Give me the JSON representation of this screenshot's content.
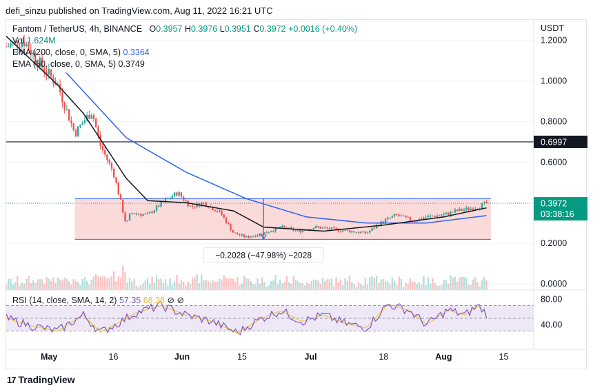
{
  "publisher_line": "defi_sinzu published on TradingView.com, Aug 11, 2022 16:21 UTC",
  "legend": {
    "symbol": "Fantom / TetherUS, 4h, BINANCE",
    "o_label": "O",
    "o_value": "0.3957",
    "h_label": "H",
    "h_value": "0.3976",
    "l_label": "L",
    "l_value": "0.3951",
    "c_label": "C",
    "c_value": "0.3972",
    "change": "+0.0016 (+0.40%)",
    "vol_label": "Vol",
    "vol_value": "1.624M",
    "ema200": "EMA (200, close, 0, SMA, 5)",
    "ema200_value": "0.3364",
    "ema50": "EMA (50, close, 0, SMA, 5)",
    "ema50_value": "0.3749"
  },
  "rsi_legend": {
    "label": "RSI (14, close, SMA, 14, 2)",
    "value1": "57.35",
    "value2": "68.38"
  },
  "price_axis": {
    "currency": "USDT",
    "ticks": [
      "1.2000",
      "1.0000",
      "0.8000",
      "0.6000",
      "0.2000",
      "0.0000"
    ]
  },
  "rsi_axis": {
    "ticks": [
      "80.00",
      "40.00"
    ]
  },
  "time_axis": {
    "ticks": [
      "May",
      "16",
      "Jun",
      "15",
      "Jul",
      "18",
      "Aug",
      "15"
    ]
  },
  "price_labels": {
    "horizontal_line": "0.6997",
    "last_price": "0.3972",
    "countdown": "03:38:16"
  },
  "measure_label": "−0.2028 (−47.98%) −2028",
  "footer": {
    "brand": "TradingView",
    "mark": "17"
  },
  "colors": {
    "up": "#26a69a",
    "down": "#ef5350",
    "ema200": "#2962ff",
    "ema50": "#131722",
    "range_fill": "#fbdada",
    "range_border": "#2962ff",
    "rsi_line": "#7e57c2",
    "rsi_ma": "#f2c94c",
    "rsi_band": "#ede7f6",
    "last_price_bg": "#089981"
  },
  "chart_data": {
    "type": "candlestick",
    "symbol": "Fantom / TetherUS",
    "timeframe": "4h",
    "exchange": "BINANCE",
    "y_axis_range": [
      -0.03,
      1.3
    ],
    "x_axis_range": [
      "2022-04-21",
      "2022-08-22"
    ],
    "ohlc_last": {
      "open": 0.3957,
      "high": 0.3976,
      "low": 0.3951,
      "close": 0.3972,
      "change": 0.0016,
      "change_pct": 0.4
    },
    "price_path": [
      {
        "date": "2022-04-21",
        "close": 1.17
      },
      {
        "date": "2022-04-25",
        "close": 1.2
      },
      {
        "date": "2022-04-29",
        "close": 1.08
      },
      {
        "date": "2022-05-03",
        "close": 0.98
      },
      {
        "date": "2022-05-07",
        "close": 0.74
      },
      {
        "date": "2022-05-09",
        "close": 0.8
      },
      {
        "date": "2022-05-11",
        "close": 0.85
      },
      {
        "date": "2022-05-13",
        "close": 0.68
      },
      {
        "date": "2022-05-16",
        "close": 0.55
      },
      {
        "date": "2022-05-19",
        "close": 0.29
      },
      {
        "date": "2022-05-20",
        "close": 0.35
      },
      {
        "date": "2022-05-24",
        "close": 0.34
      },
      {
        "date": "2022-05-28",
        "close": 0.41
      },
      {
        "date": "2022-05-31",
        "close": 0.45
      },
      {
        "date": "2022-06-03",
        "close": 0.38
      },
      {
        "date": "2022-06-06",
        "close": 0.4
      },
      {
        "date": "2022-06-10",
        "close": 0.35
      },
      {
        "date": "2022-06-13",
        "close": 0.25
      },
      {
        "date": "2022-06-16",
        "close": 0.23
      },
      {
        "date": "2022-06-20",
        "close": 0.25
      },
      {
        "date": "2022-06-24",
        "close": 0.28
      },
      {
        "date": "2022-06-28",
        "close": 0.26
      },
      {
        "date": "2022-07-02",
        "close": 0.28
      },
      {
        "date": "2022-07-06",
        "close": 0.27
      },
      {
        "date": "2022-07-10",
        "close": 0.26
      },
      {
        "date": "2022-07-14",
        "close": 0.25
      },
      {
        "date": "2022-07-18",
        "close": 0.31
      },
      {
        "date": "2022-07-21",
        "close": 0.34
      },
      {
        "date": "2022-07-25",
        "close": 0.31
      },
      {
        "date": "2022-07-28",
        "close": 0.33
      },
      {
        "date": "2022-08-01",
        "close": 0.34
      },
      {
        "date": "2022-08-04",
        "close": 0.36
      },
      {
        "date": "2022-08-07",
        "close": 0.37
      },
      {
        "date": "2022-08-09",
        "close": 0.38
      },
      {
        "date": "2022-08-11",
        "close": 0.397
      }
    ],
    "ema200_path": [
      {
        "date": "2022-05-05",
        "value": 1.04
      },
      {
        "date": "2022-05-19",
        "value": 0.72
      },
      {
        "date": "2022-06-02",
        "value": 0.55
      },
      {
        "date": "2022-06-16",
        "value": 0.42
      },
      {
        "date": "2022-06-30",
        "value": 0.33
      },
      {
        "date": "2022-07-14",
        "value": 0.3
      },
      {
        "date": "2022-07-28",
        "value": 0.3
      },
      {
        "date": "2022-08-11",
        "value": 0.3364
      }
    ],
    "ema50_path": [
      {
        "date": "2022-04-21",
        "value": 1.22
      },
      {
        "date": "2022-05-03",
        "value": 0.98
      },
      {
        "date": "2022-05-09",
        "value": 0.84
      },
      {
        "date": "2022-05-19",
        "value": 0.52
      },
      {
        "date": "2022-05-24",
        "value": 0.41
      },
      {
        "date": "2022-06-02",
        "value": 0.4
      },
      {
        "date": "2022-06-13",
        "value": 0.36
      },
      {
        "date": "2022-06-20",
        "value": 0.28
      },
      {
        "date": "2022-07-04",
        "value": 0.26
      },
      {
        "date": "2022-07-18",
        "value": 0.29
      },
      {
        "date": "2022-08-01",
        "value": 0.33
      },
      {
        "date": "2022-08-11",
        "value": 0.3749
      }
    ],
    "horizontal_line": 0.6997,
    "range_box": {
      "top": 0.42,
      "bottom": 0.22,
      "from": "2022-05-07",
      "to": "2022-08-12"
    },
    "measure": {
      "change": -0.2028,
      "change_pct": -47.98,
      "ticks": -2028
    },
    "rsi": {
      "length": 14,
      "upper": 70,
      "lower": 30,
      "values_last": [
        57.35,
        68.38
      ],
      "points": [
        {
          "date": "2022-04-21",
          "value": 50
        },
        {
          "date": "2022-04-27",
          "value": 38
        },
        {
          "date": "2022-05-03",
          "value": 30
        },
        {
          "date": "2022-05-09",
          "value": 55
        },
        {
          "date": "2022-05-13",
          "value": 28
        },
        {
          "date": "2022-05-17",
          "value": 42
        },
        {
          "date": "2022-05-21",
          "value": 58
        },
        {
          "date": "2022-05-27",
          "value": 70
        },
        {
          "date": "2022-06-02",
          "value": 55
        },
        {
          "date": "2022-06-08",
          "value": 45
        },
        {
          "date": "2022-06-14",
          "value": 27
        },
        {
          "date": "2022-06-19",
          "value": 48
        },
        {
          "date": "2022-06-24",
          "value": 62
        },
        {
          "date": "2022-06-29",
          "value": 45
        },
        {
          "date": "2022-07-04",
          "value": 55
        },
        {
          "date": "2022-07-09",
          "value": 42
        },
        {
          "date": "2022-07-14",
          "value": 35
        },
        {
          "date": "2022-07-19",
          "value": 72
        },
        {
          "date": "2022-07-24",
          "value": 62
        },
        {
          "date": "2022-07-28",
          "value": 40
        },
        {
          "date": "2022-08-02",
          "value": 63
        },
        {
          "date": "2022-08-06",
          "value": 55
        },
        {
          "date": "2022-08-09",
          "value": 70
        },
        {
          "date": "2022-08-11",
          "value": 57.35
        }
      ]
    }
  }
}
